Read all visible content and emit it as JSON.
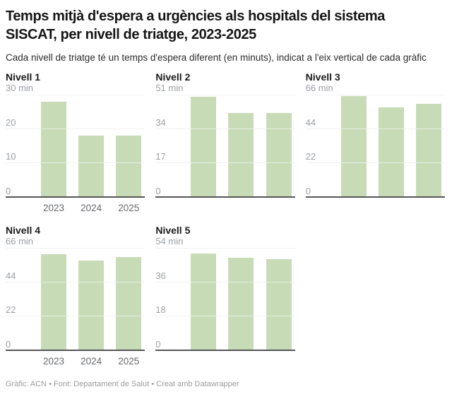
{
  "header": {
    "title_line1": "Temps mitjà d'espera a urgències als hospitals del sistema",
    "title_line2": "SISCAT, per nivell de triatge, 2023-2025",
    "subtitle": "Cada nivell de triatge té un temps d'espera diferent (en minuts), indicat a l'eix vertical de cada gràfic"
  },
  "footer": {
    "text": "Gràfic: ACN • Font: Departament de Salut • Creat amb Datawrapper"
  },
  "colors": {
    "bar": "#c7dbb7",
    "gridline": "#e0e0e0",
    "baseline": "#565656",
    "tick_label": "#9a9ea3",
    "year_label": "#66696d"
  },
  "chart_data": [
    {
      "type": "bar",
      "title": "Nivell 1",
      "categories": [
        "2023",
        "2024",
        "2025"
      ],
      "values": [
        28,
        18,
        18
      ],
      "ylabel": "min",
      "ylim": [
        0,
        30
      ],
      "yticks": [
        0,
        10,
        20,
        30
      ],
      "ymax_label": "30 min",
      "show_x_labels": true
    },
    {
      "type": "bar",
      "title": "Nivell 2",
      "categories": [
        "2023",
        "2024",
        "2025"
      ],
      "values": [
        50,
        42,
        42
      ],
      "ylabel": "min",
      "ylim": [
        0,
        51
      ],
      "yticks": [
        0,
        17,
        34,
        51
      ],
      "ymax_label": "51 min",
      "show_x_labels": false
    },
    {
      "type": "bar",
      "title": "Nivell 3",
      "categories": [
        "2023",
        "2024",
        "2025"
      ],
      "values": [
        65,
        58,
        60
      ],
      "ylabel": "min",
      "ylim": [
        0,
        66
      ],
      "yticks": [
        0,
        22,
        44,
        66
      ],
      "ymax_label": "66 min",
      "show_x_labels": false
    },
    {
      "type": "bar",
      "title": "Nivell 4",
      "categories": [
        "2023",
        "2024",
        "2025"
      ],
      "values": [
        62,
        58,
        60
      ],
      "ylabel": "min",
      "ylim": [
        0,
        66
      ],
      "yticks": [
        0,
        22,
        44,
        66
      ],
      "ymax_label": "66 min",
      "show_x_labels": true
    },
    {
      "type": "bar",
      "title": "Nivell 5",
      "categories": [
        "2023",
        "2024",
        "2025"
      ],
      "values": [
        51,
        49,
        48
      ],
      "ylabel": "min",
      "ylim": [
        0,
        54
      ],
      "yticks": [
        0,
        18,
        36,
        54
      ],
      "ymax_label": "54 min",
      "show_x_labels": false
    }
  ]
}
